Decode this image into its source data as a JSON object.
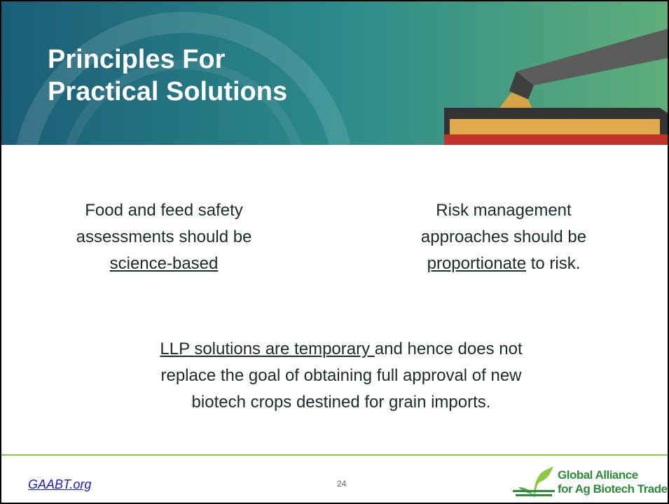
{
  "header": {
    "title_lines": [
      "Principles For",
      "Practical Solutions"
    ]
  },
  "body": {
    "points": [
      {
        "parts": [
          {
            "text": "Food and feed safety assessments should be "
          },
          {
            "text": "science-based",
            "underline": true
          }
        ]
      },
      {
        "parts": [
          {
            "text": "Risk management approaches should be "
          },
          {
            "text": "proportionate",
            "underline": true
          },
          {
            "text": " to risk."
          }
        ]
      },
      {
        "parts": [
          {
            "text": "LLP solutions are temporary ",
            "underline": true
          },
          {
            "text": "and hence does not replace the goal of obtaining full approval of new biotech crops destined for grain imports."
          }
        ]
      }
    ]
  },
  "footer": {
    "link": "GAABT.org",
    "page_number": "24",
    "logo_lines": [
      "Global Alliance",
      "for Ag Biotech Trade"
    ]
  }
}
